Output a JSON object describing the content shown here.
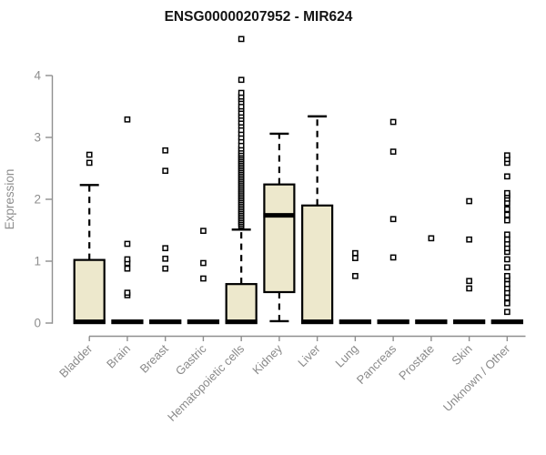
{
  "chart_data": {
    "type": "boxplot",
    "title": "ENSG00000207952 - MIR624",
    "ylabel": "Expression",
    "ylim": [
      0,
      4.7
    ],
    "yticks": [
      0,
      1,
      2,
      3,
      4
    ],
    "grid": false,
    "categories": [
      "Bladder",
      "Brain",
      "Breast",
      "Gastric",
      "Hematopoietic cells",
      "Kidney",
      "Liver",
      "Lung",
      "Pancreas",
      "Prostate",
      "Skin",
      "Unknown / Other"
    ],
    "boxes": [
      {
        "category": "Bladder",
        "q1": 0,
        "median": 0.02,
        "q3": 1.02,
        "whisker_low": 0,
        "whisker_high": 2.23,
        "outliers": [
          2.59,
          2.72
        ]
      },
      {
        "category": "Brain",
        "q1": 0,
        "median": 0.02,
        "q3": 0.04,
        "whisker_low": 0,
        "whisker_high": 0.04,
        "outliers": [
          0.45,
          0.49,
          0.88,
          0.97,
          1.03,
          1.28,
          3.29
        ]
      },
      {
        "category": "Breast",
        "q1": 0,
        "median": 0.02,
        "q3": 0.04,
        "whisker_low": 0,
        "whisker_high": 0.04,
        "outliers": [
          0.88,
          1.04,
          1.21,
          2.46,
          2.79
        ]
      },
      {
        "category": "Gastric",
        "q1": 0,
        "median": 0.02,
        "q3": 0.04,
        "whisker_low": 0,
        "whisker_high": 0.04,
        "outliers": [
          0.72,
          0.97,
          1.49
        ]
      },
      {
        "category": "Hematopoietic cells",
        "q1": 0,
        "median": 0.02,
        "q3": 0.63,
        "whisker_low": 0,
        "whisker_high": 1.51,
        "outliers": [
          1.57,
          1.6,
          1.63,
          1.66,
          1.69,
          1.72,
          1.75,
          1.78,
          1.81,
          1.84,
          1.87,
          1.9,
          1.93,
          1.96,
          1.99,
          2.02,
          2.05,
          2.08,
          2.11,
          2.14,
          2.17,
          2.2,
          2.23,
          2.26,
          2.29,
          2.32,
          2.35,
          2.38,
          2.41,
          2.44,
          2.47,
          2.5,
          2.53,
          2.56,
          2.59,
          2.62,
          2.65,
          2.68,
          2.71,
          2.74,
          2.78,
          2.82,
          2.87,
          2.94,
          3.0,
          3.06,
          3.12,
          3.19,
          3.24,
          3.3,
          3.35,
          3.4,
          3.46,
          3.5,
          3.57,
          3.62,
          3.66,
          3.72,
          3.93,
          4.59
        ]
      },
      {
        "category": "Kidney",
        "q1": 0.5,
        "median": 1.74,
        "q3": 2.24,
        "whisker_low": 0.03,
        "whisker_high": 3.06,
        "outliers": []
      },
      {
        "category": "Liver",
        "q1": 0,
        "median": 0.02,
        "q3": 1.9,
        "whisker_low": 0,
        "whisker_high": 3.34,
        "outliers": []
      },
      {
        "category": "Lung",
        "q1": 0,
        "median": 0.02,
        "q3": 0.04,
        "whisker_low": 0,
        "whisker_high": 0.04,
        "outliers": [
          0.76,
          1.05,
          1.13
        ]
      },
      {
        "category": "Pancreas",
        "q1": 0,
        "median": 0.02,
        "q3": 0.04,
        "whisker_low": 0,
        "whisker_high": 0.04,
        "outliers": [
          1.06,
          1.68,
          2.77,
          3.25
        ]
      },
      {
        "category": "Prostate",
        "q1": 0,
        "median": 0.02,
        "q3": 0.04,
        "whisker_low": 0,
        "whisker_high": 0.04,
        "outliers": [
          1.37
        ]
      },
      {
        "category": "Skin",
        "q1": 0,
        "median": 0.02,
        "q3": 0.04,
        "whisker_low": 0,
        "whisker_high": 0.04,
        "outliers": [
          0.56,
          0.68,
          1.35,
          1.97
        ]
      },
      {
        "category": "Unknown / Other",
        "q1": 0,
        "median": 0.02,
        "q3": 0.04,
        "whisker_low": 0,
        "whisker_high": 0.04,
        "outliers": [
          0.18,
          0.32,
          0.41,
          0.49,
          0.56,
          0.63,
          0.71,
          0.76,
          0.9,
          1.03,
          1.15,
          1.21,
          1.28,
          1.35,
          1.43,
          1.66,
          1.75,
          1.84,
          1.94,
          2.01,
          2.06,
          2.1,
          2.37,
          2.59,
          2.65,
          2.71
        ]
      }
    ],
    "colors": {
      "box_fill": "#EDE8CC",
      "box_border": "#000000",
      "median": "#000000",
      "whisker": "#000000",
      "outlier_stroke": "#000000",
      "outlier_fill": "#FFFFFF",
      "axis": "#8F8F8F",
      "tick_label": "#8E8E8E",
      "title_color": "#141414",
      "background": "#FFFFFF"
    }
  }
}
